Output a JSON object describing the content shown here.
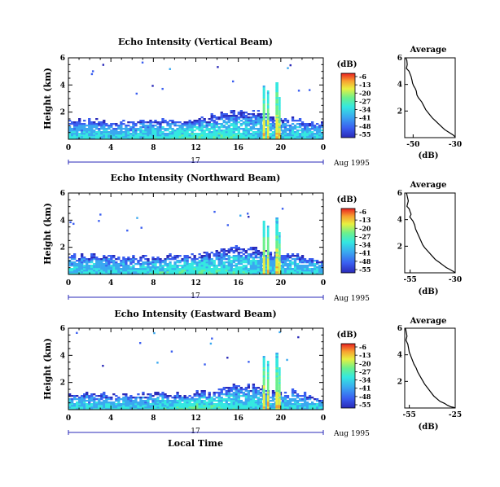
{
  "chart_data": [
    {
      "type": "heatmap",
      "title": "Echo Intensity (Vertical Beam)",
      "ylabel": "Height (km)",
      "xlabel": "",
      "xticks": [
        "0",
        "4",
        "8",
        "12",
        "16",
        "20",
        "0"
      ],
      "yticks": [
        "2",
        "4",
        "6"
      ],
      "xlim": [
        0,
        24
      ],
      "ylim": [
        0,
        6
      ],
      "date_label": "17",
      "date_suffix": "Aug 1995",
      "colorbar": {
        "unit": "(dB)",
        "ticks": [
          "-6",
          "-13",
          "-20",
          "-27",
          "-34",
          "-41",
          "-48",
          "-55"
        ]
      },
      "profile": {
        "title": "Average",
        "xlabel": "(dB)",
        "xticks": [
          "-50",
          "-30"
        ],
        "yticks": [
          "2",
          "4",
          "6"
        ],
        "xlim": [
          -54,
          -30
        ],
        "ylim": [
          0,
          6
        ],
        "x": [
          -53.5,
          -53,
          -52.8,
          -53.2,
          -52,
          -51.5,
          -51,
          -50.5,
          -50.3,
          -49.8,
          -49,
          -48.5,
          -48.2,
          -47.5,
          -46,
          -45,
          -44,
          -42.5,
          -41,
          -39,
          -37,
          -35,
          -33,
          -31,
          -30
        ],
        "y": [
          6.0,
          5.8,
          5.5,
          5.2,
          5.0,
          4.8,
          4.6,
          4.3,
          4.1,
          3.9,
          3.7,
          3.5,
          3.2,
          3.0,
          2.7,
          2.4,
          2.1,
          1.8,
          1.5,
          1.2,
          0.9,
          0.6,
          0.4,
          0.2,
          0.05
        ]
      }
    },
    {
      "type": "heatmap",
      "title": "Echo Intensity (Northward Beam)",
      "ylabel": "Height (km)",
      "xlabel": "",
      "xticks": [
        "0",
        "4",
        "8",
        "12",
        "16",
        "20",
        "0"
      ],
      "yticks": [
        "2",
        "4",
        "6"
      ],
      "xlim": [
        0,
        24
      ],
      "ylim": [
        0,
        6
      ],
      "date_label": "17",
      "date_suffix": "Aug 1995",
      "colorbar": {
        "unit": "(dB)",
        "ticks": [
          "-6",
          "-13",
          "-20",
          "-27",
          "-34",
          "-41",
          "-48",
          "-55"
        ]
      },
      "profile": {
        "title": "Average",
        "xlabel": "(dB)",
        "xticks": [
          "-55",
          "-30"
        ],
        "yticks": [
          "2",
          "4",
          "6"
        ],
        "xlim": [
          -58,
          -30
        ],
        "ylim": [
          0,
          6
        ],
        "x": [
          -57,
          -56.5,
          -56,
          -56.8,
          -55.5,
          -55,
          -54.5,
          -55.2,
          -53.5,
          -52.5,
          -52,
          -51,
          -50,
          -49,
          -48,
          -47,
          -45,
          -43,
          -41,
          -39,
          -37,
          -35,
          -33,
          -31,
          -30
        ],
        "y": [
          6.0,
          5.7,
          5.4,
          5.0,
          4.8,
          4.6,
          4.4,
          4.2,
          3.9,
          3.6,
          3.3,
          3.0,
          2.7,
          2.4,
          2.1,
          1.9,
          1.6,
          1.3,
          1.0,
          0.8,
          0.6,
          0.4,
          0.25,
          0.1,
          0.0
        ]
      }
    },
    {
      "type": "heatmap",
      "title": "Echo Intensity (Eastward Beam)",
      "ylabel": "Height (km)",
      "xlabel": "Local Time",
      "xticks": [
        "0",
        "4",
        "8",
        "12",
        "16",
        "20",
        "0"
      ],
      "yticks": [
        "2",
        "4",
        "6"
      ],
      "xlim": [
        0,
        24
      ],
      "ylim": [
        0,
        6
      ],
      "date_label": "17",
      "date_suffix": "Aug 1995",
      "colorbar": {
        "unit": "(dB)",
        "ticks": [
          "-6",
          "-13",
          "-20",
          "-27",
          "-34",
          "-41",
          "-48",
          "-55"
        ]
      },
      "profile": {
        "title": "Average",
        "xlabel": "(dB)",
        "xticks": [
          "-55",
          "-25"
        ],
        "yticks": [
          "2",
          "4",
          "6"
        ],
        "xlim": [
          -58,
          -25
        ],
        "ylim": [
          0,
          6
        ],
        "x": [
          -57.5,
          -57,
          -56.5,
          -57.2,
          -56,
          -55.5,
          -55,
          -54,
          -53,
          -52,
          -50.5,
          -49.5,
          -48,
          -46.5,
          -45,
          -43,
          -41,
          -39,
          -37,
          -35,
          -32,
          -30,
          -28,
          -26,
          -25
        ],
        "y": [
          6.0,
          5.7,
          5.4,
          5.1,
          4.8,
          4.5,
          4.2,
          3.9,
          3.6,
          3.3,
          3.0,
          2.7,
          2.4,
          2.1,
          1.8,
          1.5,
          1.2,
          0.9,
          0.7,
          0.5,
          0.35,
          0.2,
          0.1,
          0.05,
          0.0
        ]
      }
    }
  ],
  "colors": {
    "colormap": [
      "#2a2ab8",
      "#3a5ef0",
      "#3aa8f0",
      "#34e8e0",
      "#6cf08c",
      "#e8f040",
      "#f8a030",
      "#e82020"
    ]
  }
}
